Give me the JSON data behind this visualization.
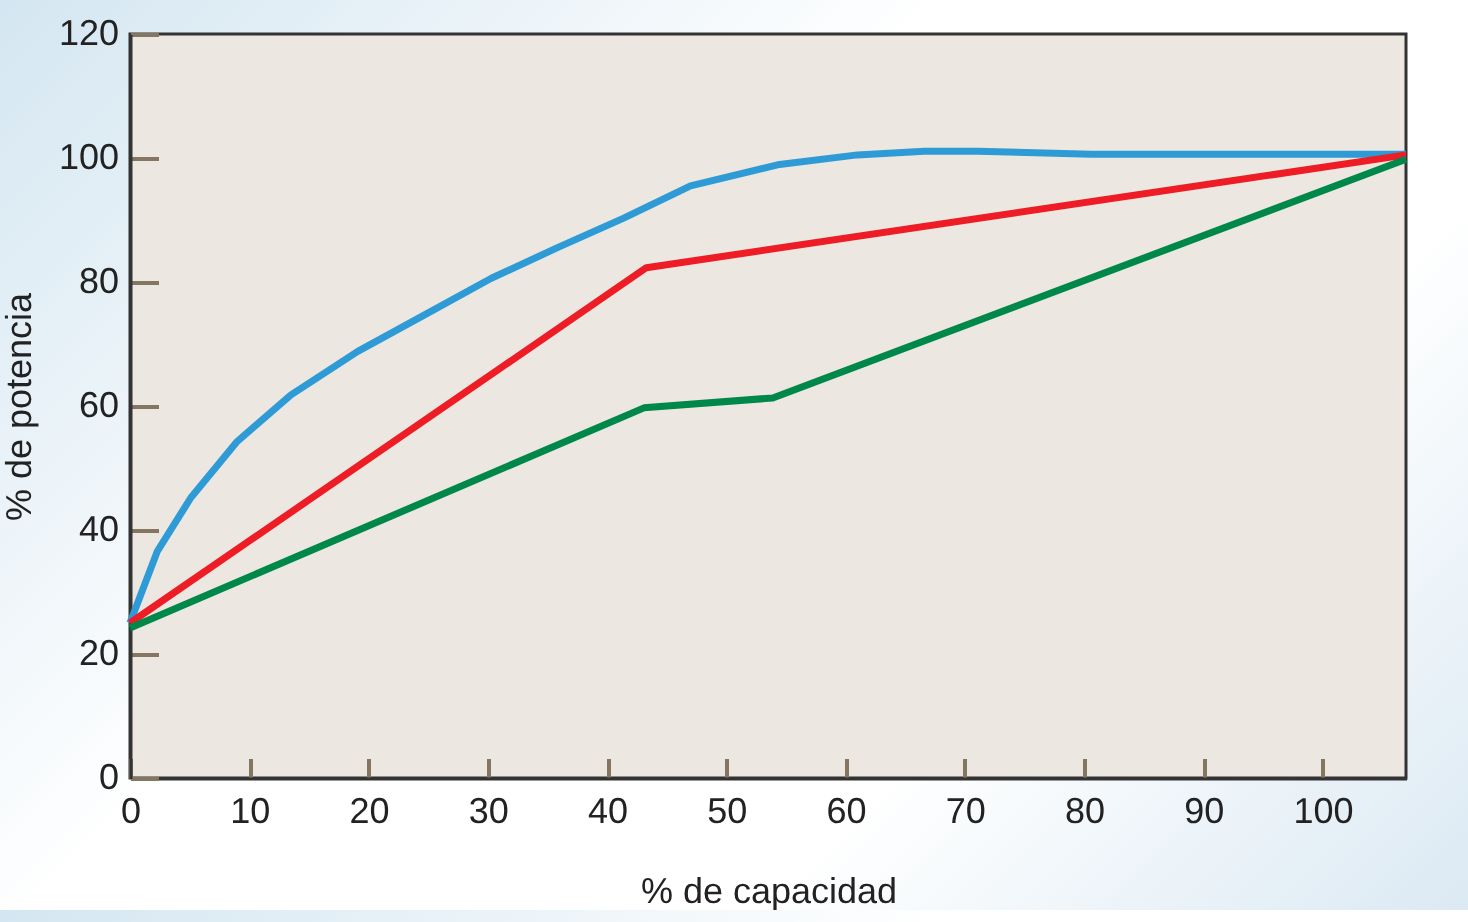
{
  "chart_data": {
    "type": "line",
    "xlabel": "% de capacidad",
    "ylabel": "% de potencia",
    "xlim": [
      0,
      107
    ],
    "ylim": [
      0,
      120
    ],
    "xticks": [
      0,
      10,
      20,
      30,
      40,
      50,
      60,
      70,
      80,
      90,
      100
    ],
    "yticks": [
      0,
      20,
      40,
      60,
      80,
      100,
      120
    ],
    "grid": false,
    "legend": false,
    "marker": "none",
    "line_style": "solid",
    "series": [
      {
        "color": "#2e9bd6",
        "x": [
          0,
          2.3,
          5.1,
          9,
          13.5,
          19.1,
          24.7,
          30.3,
          35.8,
          41.4,
          47,
          54.3,
          61,
          66.6,
          71.1,
          80.6,
          107
        ],
        "values": [
          25,
          36.6,
          45.2,
          54.3,
          61.8,
          68.8,
          74.7,
          80.6,
          85.5,
          90.3,
          95.5,
          98.9,
          100.5,
          101.1,
          101.1,
          100.6,
          100.6
        ]
      },
      {
        "color": "#ee1c25",
        "x": [
          0,
          43.3,
          107
        ],
        "values": [
          25,
          82.3,
          100.5
        ]
      },
      {
        "color": "#00874a",
        "x": [
          0,
          43.1,
          53.9,
          107
        ],
        "values": [
          24.2,
          59.7,
          61.3,
          99.8
        ]
      }
    ]
  }
}
